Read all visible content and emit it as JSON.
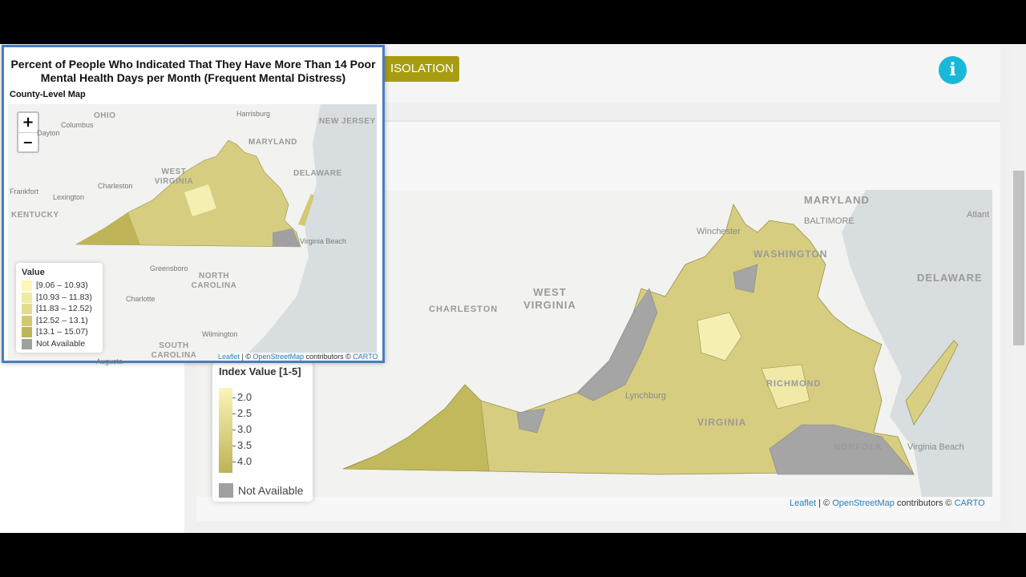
{
  "toolbar": {
    "button": "ISOLATION",
    "info_icon": "i"
  },
  "main_map": {
    "labels": [
      "MARYLAND",
      "BALTIMORE",
      "Atlant",
      "DELAWARE",
      "Winchester",
      "WASHINGTON",
      "WEST VIRGINIA",
      "CHARLESTON",
      "Lynchburg",
      "RICHMOND",
      "VIRGINIA",
      "NORFOLK",
      "Virginia Beach"
    ],
    "legend": {
      "title": "Index Value [1-5]",
      "items": [
        "2.0",
        "2.5",
        "3.0",
        "3.5",
        "4.0"
      ],
      "not_available": "Not Available"
    },
    "attribution": {
      "leaflet": "Leaflet",
      "osm": "OpenStreetMap",
      "carto": "CARTO",
      "text1": "| ©",
      "text2": "contributors ©"
    }
  },
  "popup": {
    "title": "Percent of People Who Indicated That They Have More Than 14 Poor Mental Health Days per Month (Frequent Mental Distress)",
    "subtitle": "County-Level Map",
    "zoom_in": "+",
    "zoom_out": "−",
    "labels": [
      "OHIO",
      "Columbus",
      "Dayton",
      "Harrisburg",
      "MARYLAND",
      "NEW JERSEY",
      "DELAWARE",
      "WEST VIRGINIA",
      "Charleston",
      "Frankfort",
      "Lexington",
      "KENTUCKY",
      "Virginia Beach",
      "Greensboro",
      "NORTH CAROLINA",
      "Charlotte",
      "Wilmington",
      "SOUTH CAROLINA",
      "Augusta"
    ],
    "legend": {
      "title": "Value",
      "items": [
        "[9.06 – 10.93)",
        "[10.93 – 11.83)",
        "[11.83 – 12.52)",
        "[12.52 – 13.1)",
        "[13.1 – 15.07)",
        "Not Available"
      ]
    },
    "attribution": {
      "leaflet": "Leaflet",
      "osm": "OpenStreetMap",
      "carto": "CARTO",
      "text1": "| ©",
      "text2": "contributors ©"
    }
  }
}
